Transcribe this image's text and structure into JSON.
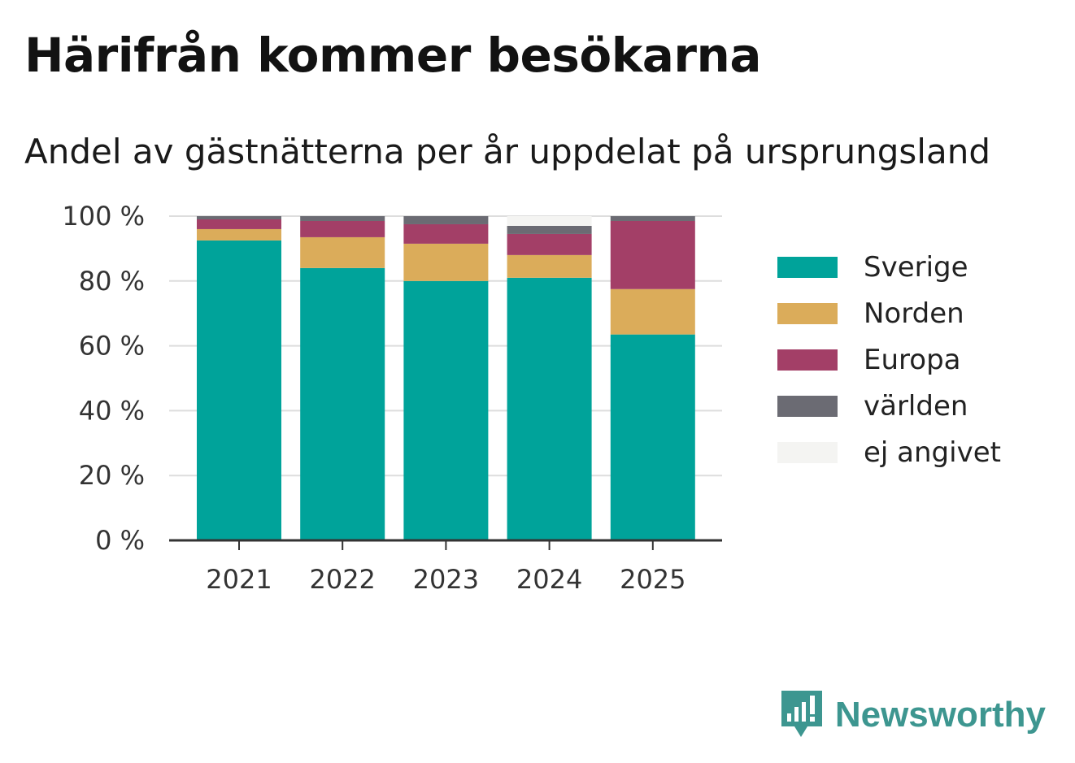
{
  "header": {
    "title": "Härifrån kommer besökarna",
    "subtitle": "Andel av gästnätterna per år uppdelat på ursprungsland"
  },
  "chart_data": {
    "type": "bar",
    "stacked": true,
    "categories": [
      "2021",
      "2022",
      "2023",
      "2024",
      "2025"
    ],
    "series": [
      {
        "name": "Sverige",
        "color": "#00a39a",
        "values": [
          92.5,
          84.0,
          80.0,
          81.0,
          63.5
        ]
      },
      {
        "name": "Norden",
        "color": "#dbac5a",
        "values": [
          3.5,
          9.5,
          11.5,
          7.0,
          14.0
        ]
      },
      {
        "name": "Europa",
        "color": "#a33f67",
        "values": [
          3.0,
          5.0,
          6.0,
          6.5,
          21.0
        ]
      },
      {
        "name": "världen",
        "color": "#6b6b73",
        "values": [
          1.0,
          1.5,
          2.5,
          2.5,
          1.5
        ]
      },
      {
        "name": "ej angivet",
        "color": "#f4f4f2",
        "values": [
          0.0,
          0.0,
          0.0,
          3.0,
          0.0
        ]
      }
    ],
    "ylim": [
      0,
      100
    ],
    "yticks": [
      0,
      20,
      40,
      60,
      80,
      100
    ],
    "ytick_labels": [
      "0 %",
      "20 %",
      "40 %",
      "60 %",
      "80 %",
      "100 %"
    ],
    "xlabel": "",
    "ylabel": "",
    "grid": true,
    "legend_position": "right"
  },
  "brand": {
    "name": "Newsworthy",
    "icon": "newsworthy-logo-icon",
    "color": "#3d9690"
  }
}
